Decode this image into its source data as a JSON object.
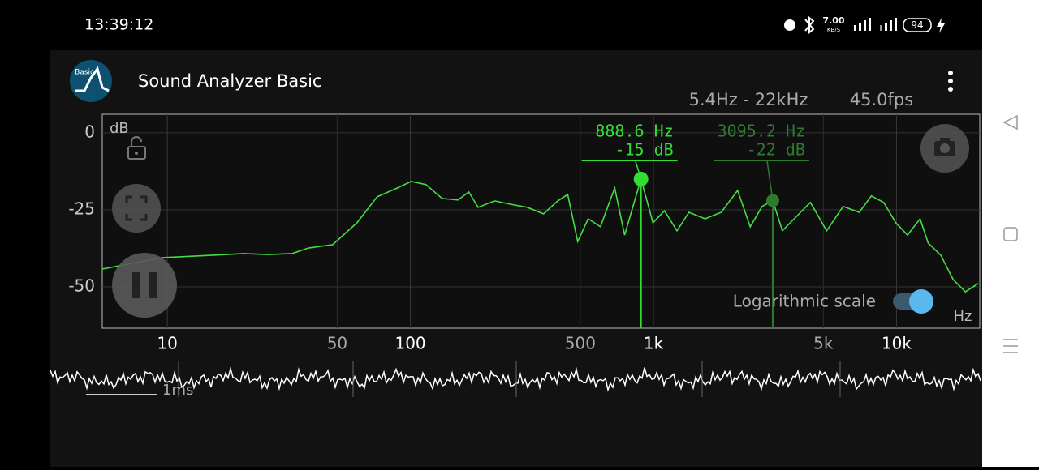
{
  "status_bar": {
    "time": "13:39:12",
    "speed": "7.00",
    "speed_unit": "KB/S",
    "battery": "94"
  },
  "app_bar": {
    "logo": "Basic",
    "title": "Sound Analyzer Basic"
  },
  "info": {
    "range": "5.4Hz - 22kHz",
    "fps": "45.0fps"
  },
  "chart_data": {
    "type": "line",
    "y_label": "dB",
    "x_label": "Hz",
    "log_scale": true,
    "log_scale_label": "Logarithmic scale",
    "grid": true,
    "color": "#44dd44",
    "xlim": [
      5.4,
      22000
    ],
    "ylim": [
      -63.4,
      6
    ],
    "xticks": [
      10,
      50,
      100,
      500,
      {
        "value": 1000,
        "label": "1k"
      },
      {
        "value": 5000,
        "label": "5k"
      },
      {
        "value": 10000,
        "label": "10k"
      }
    ],
    "yticks": [
      0,
      -25,
      -50
    ],
    "x": [
      5.4,
      9.55,
      15.7,
      20.6,
      25.9,
      32.6,
      38,
      47.9,
      60.3,
      73,
      88.5,
      100.7,
      115.8,
      135,
      157,
      174,
      190,
      222,
      259,
      303,
      353,
      404,
      444,
      488,
      539,
      605,
      693,
      761,
      888.6,
      995,
      1110,
      1250,
      1400,
      1630,
      1900,
      2220,
      2500,
      2800,
      3095.2,
      3390,
      3940,
      4420,
      5160,
      6030,
      7020,
      7880,
      8860,
      9930,
      11100,
      12500,
      13500,
      15200,
      17100,
      19200,
      21700
    ],
    "values": [
      -44.2,
      -40.5,
      -39.7,
      -39.2,
      -39.5,
      -39.2,
      -37.4,
      -36.3,
      -29.2,
      -20.8,
      -17.9,
      -15.8,
      -16.8,
      -21.3,
      -21.8,
      -19.2,
      -24.2,
      -22.1,
      -23.2,
      -24.2,
      -26.3,
      -22.1,
      -20,
      -35.3,
      -27.9,
      -30.5,
      -17.9,
      -33.2,
      -15,
      -29.2,
      -25.3,
      -31.8,
      -25.8,
      -27.9,
      -25.8,
      -18.7,
      -30.5,
      -23.9,
      -22,
      -31.8,
      -26.6,
      -22.6,
      -31.8,
      -23.9,
      -25.8,
      -20.5,
      -22.6,
      -29.2,
      -33.2,
      -27.9,
      -35.8,
      -39.7,
      -47.6,
      -51.6,
      -48.9
    ],
    "markers": {
      "x": [
        888.6,
        3095.2
      ],
      "values": [
        -15,
        -22
      ],
      "x_labels": [
        "888.6 Hz",
        "3095.2 Hz"
      ],
      "value_labels": [
        "-15 dB",
        "-22 dB"
      ],
      "colors": [
        "#33dd33",
        "#2e7a2e"
      ]
    }
  },
  "waveform": {
    "scale_label": "1ms"
  }
}
